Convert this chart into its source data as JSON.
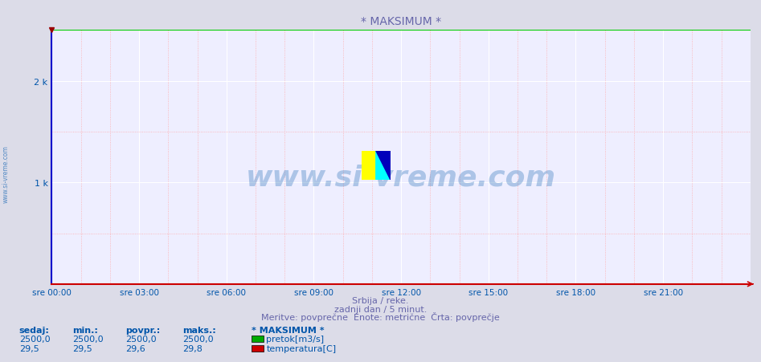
{
  "title": "* MAKSIMUM *",
  "bg_color": "#dcdce8",
  "plot_bg_color": "#eeeeff",
  "grid_major_color": "#ffffff",
  "grid_minor_color": "#ffaaaa",
  "axis_color": "#0000cc",
  "x_axis_color": "#cc0000",
  "title_color": "#6666aa",
  "label_color": "#0055aa",
  "watermark_color": "#3377bb",
  "ylabel_values": [
    0,
    1000,
    2000
  ],
  "ylabel_labels": [
    "",
    "1 k",
    "2 k"
  ],
  "ylim": [
    0,
    2500
  ],
  "x_ticks_labels": [
    "sre 00:00",
    "sre 03:00",
    "sre 06:00",
    "sre 09:00",
    "sre 12:00",
    "sre 15:00",
    "sre 18:00",
    "sre 21:00"
  ],
  "x_ticks_positions": [
    0,
    3,
    6,
    9,
    12,
    15,
    18,
    21
  ],
  "xlim": [
    0,
    24
  ],
  "pretok_value": 2500.0,
  "line_color_pretok": "#00cc00",
  "subtitle1": "Srbija / reke.",
  "subtitle2": "zadnji dan / 5 minut.",
  "subtitle3": "Meritve: povprečne  Enote: metrične  Črta: povprečje",
  "legend_title": "* MAKSIMUM *",
  "legend_items": [
    "pretok[m3/s]",
    "temperatura[C]"
  ],
  "legend_colors": [
    "#00aa00",
    "#cc0000"
  ],
  "stat_headers": [
    "sedaj:",
    "min.:",
    "povpr.:",
    "maks.:"
  ],
  "stat_pretok": [
    "2500,0",
    "2500,0",
    "2500,0",
    "2500,0"
  ],
  "stat_temp": [
    "29,5",
    "29,5",
    "29,6",
    "29,8"
  ],
  "watermark": "www.si-vreme.com",
  "side_watermark": "www.si-vreme.com"
}
